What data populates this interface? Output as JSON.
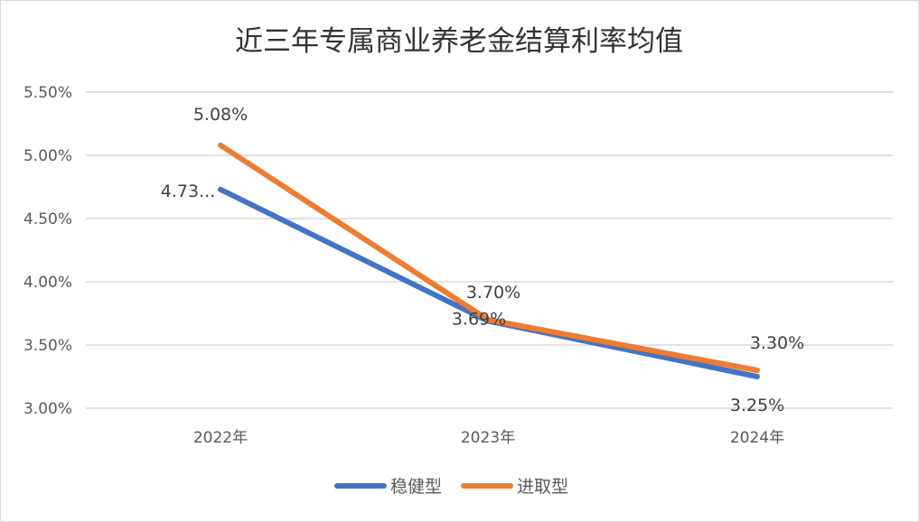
{
  "chart_data": {
    "type": "line",
    "title": "近三年专属商业养老金结算利率均值",
    "categories": [
      "2022年",
      "2023年",
      "2024年"
    ],
    "ylim": [
      3.0,
      5.5
    ],
    "y_ticks": [
      "3.00%",
      "3.50%",
      "4.00%",
      "4.50%",
      "5.00%",
      "5.50%"
    ],
    "grid": true,
    "legend_position": "bottom",
    "series": [
      {
        "name": "稳健型",
        "values": [
          4.73,
          3.69,
          3.25
        ],
        "labels": [
          "4.73...",
          "3.69%",
          "3.25%"
        ],
        "color": "#4472C4"
      },
      {
        "name": "进取型",
        "values": [
          5.08,
          3.7,
          3.3
        ],
        "labels": [
          "5.08%",
          "3.70%",
          "3.30%"
        ],
        "color": "#ED7D31"
      }
    ]
  }
}
